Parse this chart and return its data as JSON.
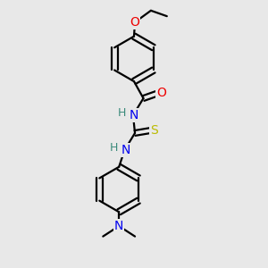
{
  "background_color": "#e8e8e8",
  "atom_colors": {
    "C": "#000000",
    "H": "#3a8a7a",
    "N": "#0000ee",
    "O": "#ee0000",
    "S": "#bbbb00"
  },
  "bond_color": "#000000",
  "bond_width": 1.6,
  "figsize": [
    3.0,
    3.0
  ],
  "dpi": 100
}
